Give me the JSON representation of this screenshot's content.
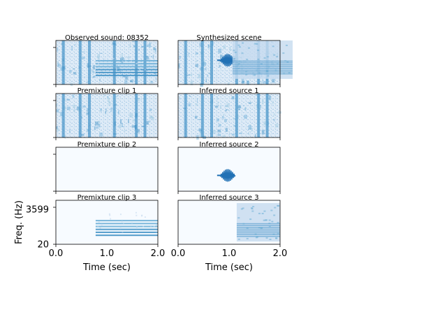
{
  "chart_data": {
    "type": "heatmap",
    "colormap": "Blues",
    "x_range": [
      0.0,
      2.0
    ],
    "x_ticks": [
      "0.0",
      "1.0",
      "2.0"
    ],
    "xlabel": "Time (sec)",
    "y_ticks": [
      "3599",
      "20"
    ],
    "ylabel": "Freq. (Hz)",
    "panels": [
      {
        "title": "Observed sound: 08352",
        "column": "left",
        "row": 1,
        "content": "noise_with_harmonic",
        "onset_sec": 0.78
      },
      {
        "title": "Synthesized scene",
        "column": "right",
        "row": 1,
        "content": "noise_with_click_and_harmonic",
        "onset_sec": 0.82
      },
      {
        "title": "Premixture clip 1",
        "column": "left",
        "row": 2,
        "content": "noise"
      },
      {
        "title": "Inferred source 1",
        "column": "right",
        "row": 2,
        "content": "noise"
      },
      {
        "title": "Premixture clip 2",
        "column": "left",
        "row": 3,
        "content": "empty"
      },
      {
        "title": "Inferred source 2",
        "column": "right",
        "row": 3,
        "content": "click",
        "onset_sec": 0.82
      },
      {
        "title": "Premixture clip 3",
        "column": "left",
        "row": 4,
        "content": "harmonic",
        "onset_sec": 0.78
      },
      {
        "title": "Inferred source 3",
        "column": "right",
        "row": 4,
        "content": "noisy_band",
        "onset_sec": 1.15
      }
    ]
  }
}
